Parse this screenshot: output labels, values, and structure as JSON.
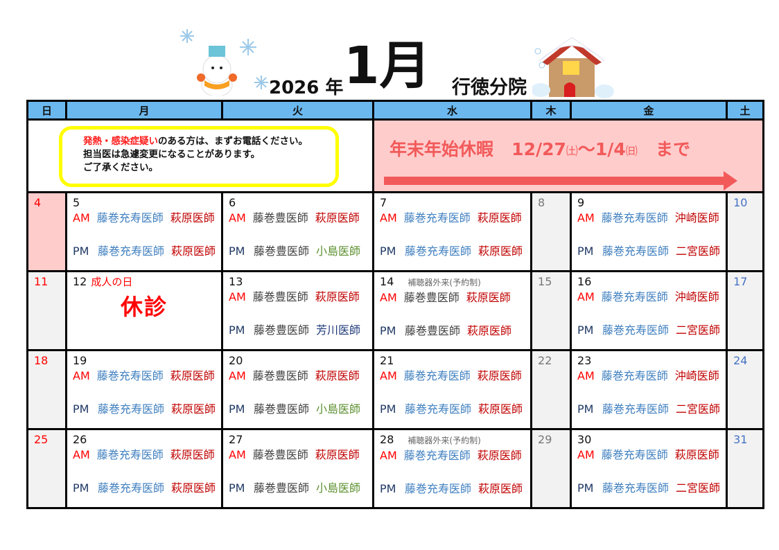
{
  "header": {
    "year": "2026 年",
    "month": "1月",
    "branch": "行徳分院"
  },
  "weekdays": [
    "日",
    "月",
    "火",
    "水",
    "木",
    "金",
    "土"
  ],
  "notice": {
    "highlight": "発熱・感染症疑い",
    "line1_rest": "のある方は、まずお電話ください。",
    "line2": "担当医は急遽変更になることがあります。",
    "line3": "ご了承ください。"
  },
  "holiday_banner": {
    "title": "年末年始休暇",
    "range_start": "12/27",
    "start_dow": "㈯",
    "tilde": "～",
    "range_end": "1/4",
    "end_dow": "㈰",
    "until": "まで",
    "color": "#f25a5a"
  },
  "labels": {
    "am": "AM",
    "pm": "PM",
    "closed": "休診"
  },
  "doctor_colors": {
    "藤巻充寿医師": "#3f7fbf",
    "藤巻豊医師": "#404040",
    "萩原医師": "#c00000",
    "小島医師": "#5b8f2e",
    "沖崎医師": "#c00000",
    "二宮医師": "#c00000",
    "芳川医師": "#1f3a7a"
  },
  "weeks": [
    {
      "sun": "4",
      "days": [
        {
          "date": "5",
          "am": [
            "藤巻充寿医師",
            "萩原医師"
          ],
          "pm": [
            "藤巻充寿医師",
            "萩原医師"
          ]
        },
        {
          "date": "6",
          "am": [
            "藤巻豊医師",
            "萩原医師"
          ],
          "pm": [
            "藤巻豊医師",
            "小島医師"
          ]
        },
        {
          "date": "7",
          "am": [
            "藤巻充寿医師",
            "萩原医師"
          ],
          "pm": [
            "藤巻充寿医師",
            "萩原医師"
          ]
        }
      ],
      "thu": "8",
      "fri": {
        "date": "9",
        "am": [
          "藤巻充寿医師",
          "沖崎医師"
        ],
        "pm": [
          "藤巻充寿医師",
          "二宮医師"
        ]
      },
      "sat": "10"
    },
    {
      "sun": "11",
      "days": [
        {
          "date": "12",
          "holiday": "成人の日",
          "closed": true
        },
        {
          "date": "13",
          "am": [
            "藤巻豊医師",
            "萩原医師"
          ],
          "pm": [
            "藤巻豊医師",
            "芳川医師"
          ]
        },
        {
          "date": "14",
          "note": "補聴器外来(予約制)",
          "am": [
            "藤巻豊医師",
            "萩原医師"
          ],
          "pm": [
            "藤巻豊医師",
            "萩原医師"
          ]
        }
      ],
      "thu": "15",
      "fri": {
        "date": "16",
        "am": [
          "藤巻充寿医師",
          "沖崎医師"
        ],
        "pm": [
          "藤巻充寿医師",
          "二宮医師"
        ]
      },
      "sat": "17"
    },
    {
      "sun": "18",
      "days": [
        {
          "date": "19",
          "am": [
            "藤巻充寿医師",
            "萩原医師"
          ],
          "pm": [
            "藤巻充寿医師",
            "萩原医師"
          ]
        },
        {
          "date": "20",
          "am": [
            "藤巻豊医師",
            "萩原医師"
          ],
          "pm": [
            "藤巻豊医師",
            "小島医師"
          ]
        },
        {
          "date": "21",
          "am": [
            "藤巻充寿医師",
            "萩原医師"
          ],
          "pm": [
            "藤巻充寿医師",
            "萩原医師"
          ]
        }
      ],
      "thu": "22",
      "fri": {
        "date": "23",
        "am": [
          "藤巻充寿医師",
          "沖崎医師"
        ],
        "pm": [
          "藤巻充寿医師",
          "二宮医師"
        ]
      },
      "sat": "24"
    },
    {
      "sun": "25",
      "days": [
        {
          "date": "26",
          "am": [
            "藤巻充寿医師",
            "萩原医師"
          ],
          "pm": [
            "藤巻充寿医師",
            "萩原医師"
          ]
        },
        {
          "date": "27",
          "am": [
            "藤巻豊医師",
            "萩原医師"
          ],
          "pm": [
            "藤巻豊医師",
            "小島医師"
          ]
        },
        {
          "date": "28",
          "note": "補聴器外来(予約制)",
          "am": [
            "藤巻充寿医師",
            "萩原医師"
          ],
          "pm": [
            "藤巻充寿医師",
            "萩原医師"
          ]
        }
      ],
      "thu": "29",
      "fri": {
        "date": "30",
        "am": [
          "藤巻充寿医師",
          "萩原医師"
        ],
        "pm": [
          "藤巻充寿医師",
          "二宮医師"
        ]
      },
      "sat": "31"
    }
  ]
}
